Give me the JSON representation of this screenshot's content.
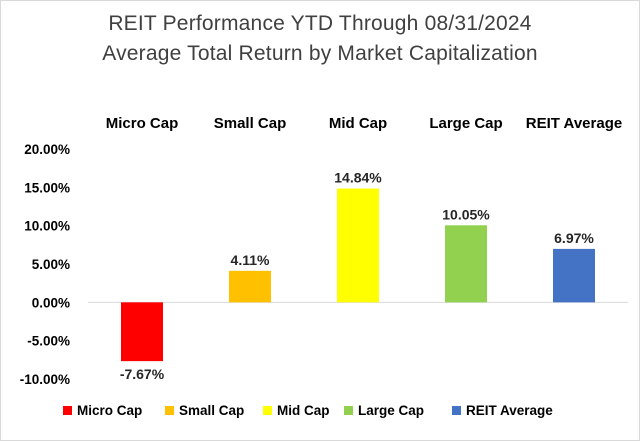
{
  "chart_data": {
    "type": "bar",
    "title": "REIT Performance YTD Through 08/31/2024",
    "subtitle": "Average Total Return by Market Capitalization",
    "categories": [
      "Micro Cap",
      "Small Cap",
      "Mid Cap",
      "Large Cap",
      "REIT Average"
    ],
    "values": [
      -7.67,
      4.11,
      14.84,
      10.05,
      6.97
    ],
    "value_labels": [
      "-7.67%",
      "4.11%",
      "14.84%",
      "10.05%",
      "6.97%"
    ],
    "colors": [
      "#ff0000",
      "#ffc000",
      "#ffff00",
      "#92d050",
      "#4472c4"
    ],
    "ylim": [
      -10,
      20
    ],
    "yticks": [
      20,
      15,
      10,
      5,
      0,
      -5,
      -10
    ],
    "ytick_labels": [
      "20.00%",
      "15.00%",
      "10.00%",
      "5.00%",
      "0.00%",
      "-5.00%",
      "-10.00%"
    ],
    "xlabel": "",
    "ylabel": "",
    "grid": false,
    "legend_position": "bottom",
    "legend": [
      "Micro Cap",
      "Small Cap",
      "Mid Cap",
      "Large Cap",
      "REIT Average"
    ]
  }
}
